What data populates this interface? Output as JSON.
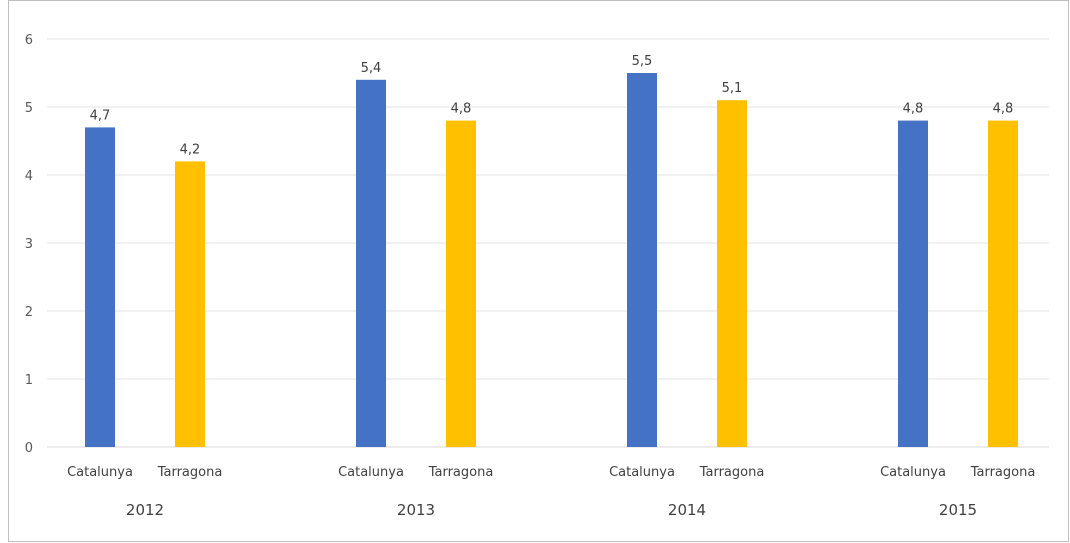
{
  "chart_data": {
    "type": "bar",
    "groups": [
      {
        "label": "2012",
        "bars": [
          {
            "category": "Catalunya",
            "value": 4.7,
            "label": "4,7",
            "color": "#4472C4"
          },
          {
            "category": "Tarragona",
            "value": 4.2,
            "label": "4,2",
            "color": "#FFC000"
          }
        ]
      },
      {
        "label": "2013",
        "bars": [
          {
            "category": "Catalunya",
            "value": 5.4,
            "label": "5,4",
            "color": "#4472C4"
          },
          {
            "category": "Tarragona",
            "value": 4.8,
            "label": "4,8",
            "color": "#FFC000"
          }
        ]
      },
      {
        "label": "2014",
        "bars": [
          {
            "category": "Catalunya",
            "value": 5.5,
            "label": "5,5",
            "color": "#4472C4"
          },
          {
            "category": "Tarragona",
            "value": 5.1,
            "label": "5,1",
            "color": "#FFC000"
          }
        ]
      },
      {
        "label": "2015",
        "bars": [
          {
            "category": "Catalunya",
            "value": 4.8,
            "label": "4,8",
            "color": "#4472C4"
          },
          {
            "category": "Tarragona",
            "value": 4.8,
            "label": "4,8",
            "color": "#FFC000"
          }
        ]
      }
    ],
    "ylim": [
      0,
      6
    ],
    "yticks": [
      "0",
      "1",
      "2",
      "3",
      "4",
      "5",
      "6"
    ],
    "grid": true,
    "title": "",
    "xlabel": "",
    "ylabel": ""
  }
}
